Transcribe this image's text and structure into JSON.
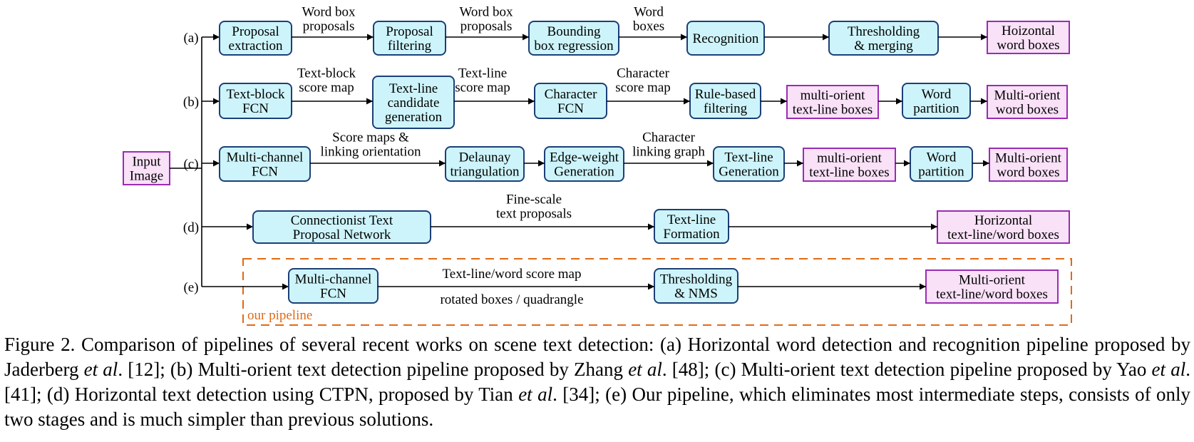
{
  "rows": [
    {
      "tag": "(a)",
      "steps": [
        {
          "type": "block",
          "lines": [
            "Proposal",
            "extraction"
          ]
        },
        {
          "type": "block",
          "lines": [
            "Proposal",
            "filtering"
          ]
        },
        {
          "type": "block",
          "lines": [
            "Bounding",
            "box regression"
          ]
        },
        {
          "type": "block",
          "lines": [
            "Recognition"
          ]
        },
        {
          "type": "block",
          "lines": [
            "Thresholding",
            "& merging"
          ]
        },
        {
          "type": "output",
          "lines": [
            "Hoizontal",
            "word boxes"
          ]
        }
      ],
      "edges": [
        {
          "lines": [
            "Word box",
            "proposals"
          ]
        },
        {
          "lines": [
            "Word box",
            "proposals"
          ]
        },
        {
          "lines": [
            "Word",
            "boxes"
          ]
        },
        {
          "lines": []
        },
        {
          "lines": []
        }
      ]
    },
    {
      "tag": "(b)",
      "steps": [
        {
          "type": "block",
          "lines": [
            "Text-block",
            "FCN"
          ]
        },
        {
          "type": "block",
          "lines": [
            "Text-line",
            "candidate",
            "generation"
          ]
        },
        {
          "type": "block",
          "lines": [
            "Character",
            "FCN"
          ]
        },
        {
          "type": "block",
          "lines": [
            "Rule-based",
            "filtering"
          ]
        },
        {
          "type": "output",
          "lines": [
            "multi-orient",
            "text-line boxes"
          ]
        },
        {
          "type": "block",
          "lines": [
            "Word",
            "partition"
          ]
        },
        {
          "type": "output",
          "lines": [
            "Multi-orient",
            "word boxes"
          ]
        }
      ],
      "edges": [
        {
          "lines": [
            "Text-block",
            "score map"
          ]
        },
        {
          "lines": [
            "Text-line",
            "score map"
          ]
        },
        {
          "lines": [
            "Character",
            "score map"
          ]
        },
        {
          "lines": []
        },
        {
          "lines": []
        },
        {
          "lines": []
        }
      ]
    },
    {
      "tag": "(c)",
      "steps": [
        {
          "type": "block",
          "lines": [
            "Multi-channel",
            "FCN"
          ]
        },
        {
          "type": "block",
          "lines": [
            "Delaunay",
            "triangulation"
          ]
        },
        {
          "type": "block",
          "lines": [
            "Edge-weight",
            "Generation"
          ]
        },
        {
          "type": "block",
          "lines": [
            "Text-line",
            "Generation"
          ]
        },
        {
          "type": "output",
          "lines": [
            "multi-orient",
            "text-line boxes"
          ]
        },
        {
          "type": "block",
          "lines": [
            "Word",
            "partition"
          ]
        },
        {
          "type": "output",
          "lines": [
            "Multi-orient",
            "word boxes"
          ]
        }
      ],
      "edges": [
        {
          "lines": [
            "Score maps &",
            "linking orientation"
          ]
        },
        {
          "lines": []
        },
        {
          "lines": [
            "Character",
            "linking graph"
          ]
        },
        {
          "lines": []
        },
        {
          "lines": []
        },
        {
          "lines": []
        }
      ]
    },
    {
      "tag": "(d)",
      "steps": [
        {
          "type": "block",
          "lines": [
            "Connectionist Text",
            "Proposal Network"
          ]
        },
        {
          "type": "block",
          "lines": [
            "Text-line",
            "Formation"
          ]
        },
        {
          "type": "output",
          "lines": [
            "Horizontal",
            "text-line/word boxes"
          ]
        }
      ],
      "edges": [
        {
          "lines": [
            "Fine-scale",
            "text proposals"
          ]
        },
        {
          "lines": []
        }
      ]
    },
    {
      "tag": "(e)",
      "steps": [
        {
          "type": "block",
          "lines": [
            "Multi-channel",
            "FCN"
          ]
        },
        {
          "type": "block",
          "lines": [
            "Thresholding",
            "& NMS"
          ]
        },
        {
          "type": "output",
          "lines": [
            "Multi-orient",
            "text-line/word boxes"
          ]
        }
      ],
      "edges": [
        {
          "lines": [
            "Text-line/word score map",
            "rotated boxes / quadrangle"
          ]
        },
        {
          "lines": []
        }
      ]
    }
  ],
  "input": {
    "lines": [
      "Input",
      "Image"
    ]
  },
  "our_pipeline_label": "our pipeline",
  "colors": {
    "block_fill": "#cdf4fa",
    "block_stroke": "#1c3f78",
    "output_fill": "#f9e1f8",
    "output_stroke": "#9a2cb3",
    "our_pipeline": "#e06a14"
  },
  "caption": {
    "s1": "Figure 2. Comparison of pipelines of several recent works on scene text detection: (a) Horizontal word detection and recognition pipeline proposed by Jaderberg ",
    "etal_a": "et al",
    "s2": ". [12]; (b) Multi-orient text detection pipeline proposed by Zhang ",
    "etal_b": "et al",
    "s3": ". [48]; (c) Multi-orient text detection pipeline proposed by Yao ",
    "etal_c": "et al",
    "s4": ". [41]; (d) Horizontal text detection using CTPN, proposed by Tian ",
    "etal_d": "et al",
    "s5": ". [34]; (e) Our pipeline, which eliminates most intermediate steps, consists of only two stages and is much simpler than previous solutions."
  }
}
